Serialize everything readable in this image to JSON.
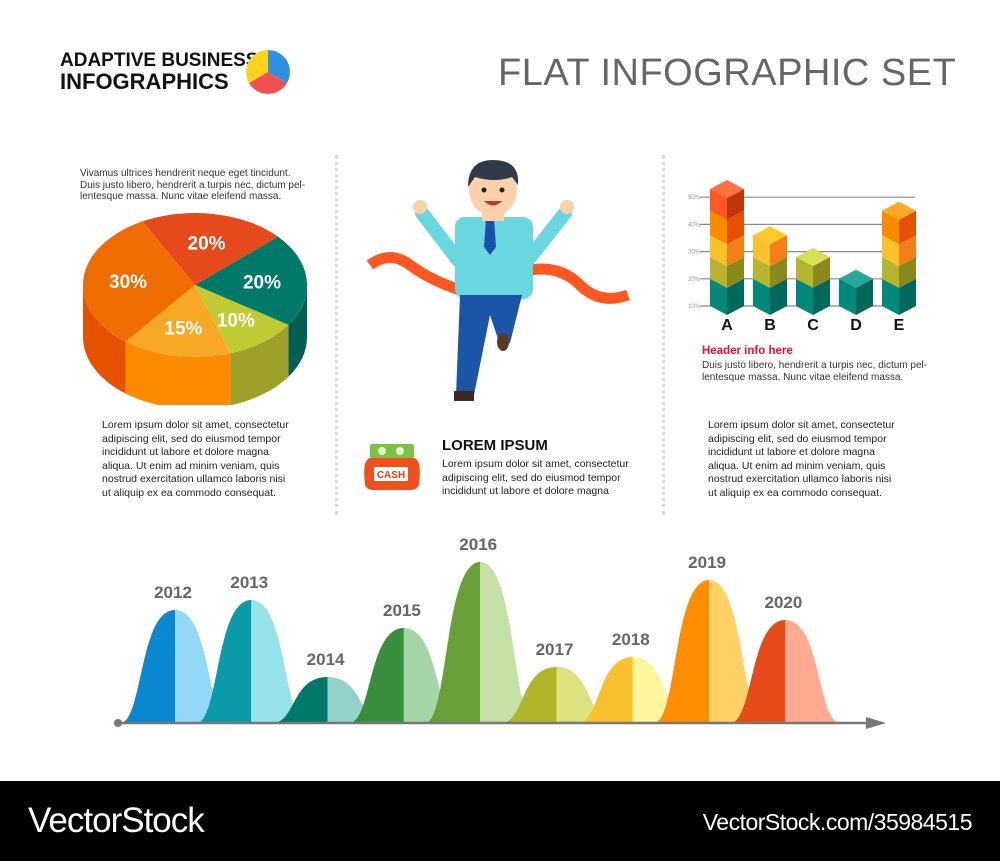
{
  "brand": {
    "line1": "ADAPTIVE BUSINESS",
    "line2": "INFOGRAPHICS",
    "logo_colors": [
      "#2f8fe0",
      "#f05050",
      "#ffd21e"
    ]
  },
  "title": "FLAT INFOGRAPHIC SET",
  "left": {
    "intro": [
      "Vivamus ultrices hendrerit neque eget tincidunt.",
      "Duis justo libero, hendrerit a turpis nec, dictum pel-",
      "lentesque massa. Nunc vitae eleifend massa."
    ],
    "body": [
      "Lorem ipsum dolor sit amet, consectetur",
      "adipiscing elit, sed do eiusmod tempor",
      "incididunt ut labore et dolore magna",
      "aliqua. Ut enim ad minim veniam, quis",
      "nostrud exercitation ullamco laboris nisi",
      "ut aliquip ex ea commodo consequat."
    ]
  },
  "center": {
    "heading": "LOREM IPSUM",
    "body": [
      "Lorem ipsum dolor sit amet, consectetur",
      "adipiscing elit, sed do eiusmod tempor",
      "incididunt ut labore et dolore magna"
    ],
    "icon_label": "CASH"
  },
  "right": {
    "header": "Header info here",
    "intro": [
      "Duis justo libero, hendrerit a turpis nec, dictum pel-",
      "lentesque massa. Nunc vitae eleifend massa."
    ],
    "body": [
      "Lorem ipsum dolor sit amet, consectetur",
      "adipiscing elit, sed do eiusmod tempor",
      "incididunt ut labore et dolore magna",
      "aliqua. Ut enim ad minim veniam, quis",
      "nostrud exercitation ullamco laboris nisi",
      "ut aliquip ex ea commodo consequat."
    ]
  },
  "footer": {
    "logo": "VectorStock",
    "url": "VectorStock.com/35984515"
  },
  "chart_data": [
    {
      "type": "pie",
      "style": "3d",
      "slices": [
        {
          "label": "20%",
          "value": 20,
          "color": "#e54a1c",
          "side": "#c23a10"
        },
        {
          "label": "20%",
          "value": 20,
          "color": "#00796b",
          "side": "#005f54"
        },
        {
          "label": "10%",
          "value": 10,
          "color": "#c0ca33",
          "side": "#9fa02a"
        },
        {
          "label": "15%",
          "value": 15,
          "color": "#f9a825",
          "side": "#fb8c00"
        },
        {
          "label": "30%",
          "value": 30,
          "color": "#ef6c00",
          "side": "#e65100"
        }
      ]
    },
    {
      "type": "bar",
      "style": "3d stacked cubes",
      "categories": [
        "A",
        "B",
        "C",
        "D",
        "E"
      ],
      "values": [
        53,
        36,
        28,
        20,
        45
      ],
      "yticks": [
        "10%",
        "20%",
        "30%",
        "40%",
        "50%"
      ],
      "ylim": [
        10,
        50
      ],
      "grid": true,
      "levels": [
        20,
        28,
        36,
        45,
        53
      ],
      "level_colors": [
        [
          "#00897b",
          "#00695c",
          "#26a69a"
        ],
        [
          "#b5b62d",
          "#8a8a1c",
          "#d4e157"
        ],
        [
          "#fbc02d",
          "#f57f17",
          "#ffca28"
        ],
        [
          "#fb8c00",
          "#e65100",
          "#ffa726"
        ],
        [
          "#ff5722",
          "#bf360c",
          "#ff7043"
        ]
      ]
    },
    {
      "type": "area",
      "style": "bell curves on timeline arrow",
      "categories": [
        "2012",
        "2013",
        "2014",
        "2015",
        "2016",
        "2017",
        "2018",
        "2019",
        "2020"
      ],
      "values": [
        113,
        123,
        46,
        95,
        161,
        56,
        66,
        143,
        103
      ],
      "colors": [
        [
          "#0a88d0",
          "#92d9f8"
        ],
        [
          "#0a9aa8",
          "#96e2ea"
        ],
        [
          "#00796b",
          "#93d1c9"
        ],
        [
          "#388e3c",
          "#a5d6a7"
        ],
        [
          "#689f38",
          "#c5e1a5"
        ],
        [
          "#afb42b",
          "#dde27f"
        ],
        [
          "#fbc02d",
          "#fff59d"
        ],
        [
          "#ff8f00",
          "#ffd166"
        ],
        [
          "#e64a19",
          "#ffab91"
        ]
      ]
    }
  ]
}
